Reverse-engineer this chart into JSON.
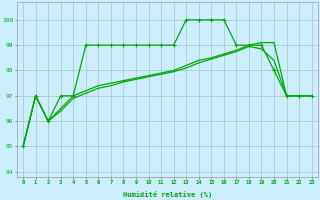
{
  "title": "",
  "xlabel": "Humidité relative (%)",
  "ylabel": "",
  "background_color": "#cceeff",
  "grid_color": "#aacccc",
  "line_color": "#00aa00",
  "xlim": [
    -0.5,
    23.5
  ],
  "ylim": [
    93.8,
    100.7
  ],
  "yticks": [
    94,
    95,
    96,
    97,
    98,
    99,
    100
  ],
  "xticks": [
    0,
    1,
    2,
    3,
    4,
    5,
    6,
    7,
    8,
    9,
    10,
    11,
    12,
    13,
    14,
    15,
    16,
    17,
    18,
    19,
    20,
    21,
    22,
    23
  ],
  "series1": [
    95,
    97,
    96,
    97,
    97,
    99,
    99,
    99,
    99,
    99,
    99,
    99,
    99,
    100,
    100,
    100,
    100,
    99,
    99,
    99,
    98,
    97,
    97,
    97
  ],
  "series2": [
    95,
    97,
    96.0,
    96.5,
    97.0,
    97.2,
    97.4,
    97.5,
    97.6,
    97.7,
    97.8,
    97.9,
    98.0,
    98.2,
    98.4,
    98.5,
    98.65,
    98.8,
    99.0,
    99.1,
    99.1,
    97,
    97,
    97
  ],
  "series3": [
    95,
    97,
    96.0,
    96.4,
    96.9,
    97.1,
    97.3,
    97.4,
    97.55,
    97.65,
    97.75,
    97.85,
    97.95,
    98.1,
    98.3,
    98.45,
    98.6,
    98.75,
    98.95,
    98.85,
    98.4,
    97,
    97,
    97
  ]
}
